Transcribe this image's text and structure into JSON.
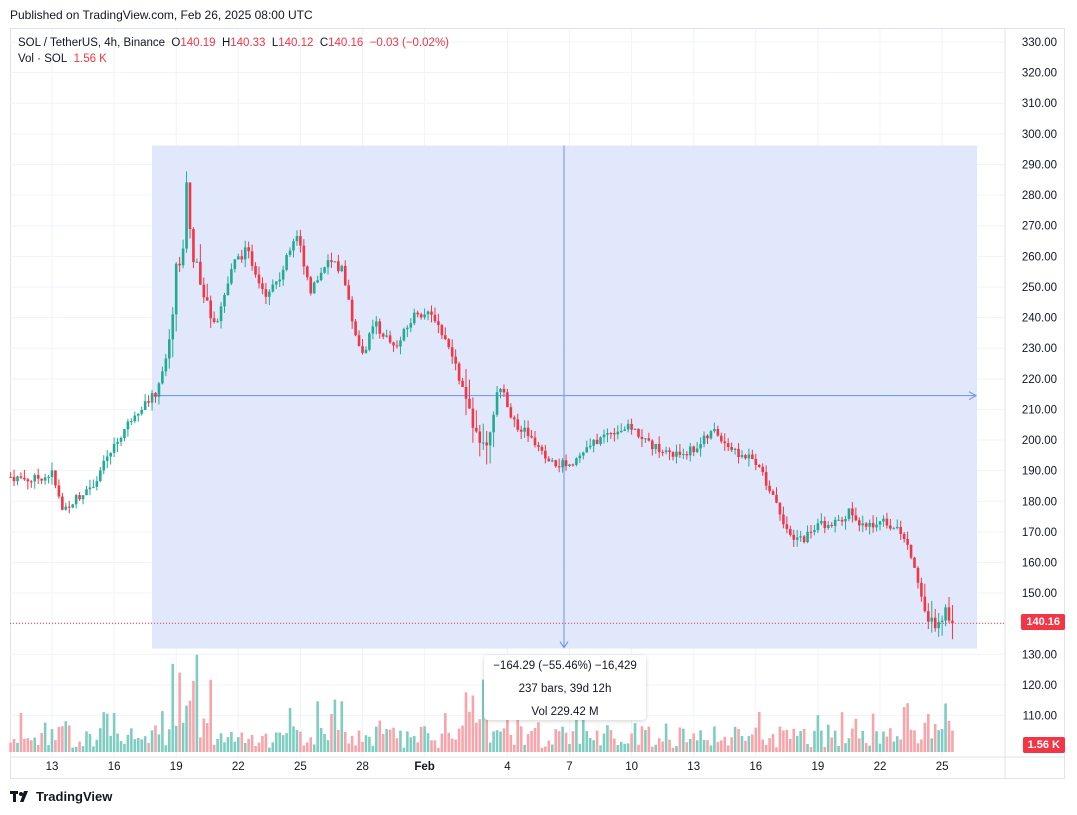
{
  "published": "Published on TradingView.com, Feb 26, 2025 08:00 UTC",
  "legend": {
    "symbol": "SOL / TetherUS, 4h, Binance",
    "o_label": "O",
    "o_value": "140.19",
    "h_label": "H",
    "h_value": "140.33",
    "l_label": "L",
    "l_value": "140.12",
    "c_label": "C",
    "c_value": "140.16",
    "change": "−0.03 (−0.02%)",
    "vol_label": "Vol · SOL",
    "vol_value": "1.56 K"
  },
  "measure": {
    "line1": "−164.29 (−55.46%) −16,429",
    "line2": "237 bars, 39d 12h",
    "line3": "Vol 229.42 M"
  },
  "price_tag": "140.16",
  "volume_tag": "1.56 K",
  "brand": "TradingView",
  "colors": {
    "up": "#22ab94",
    "down": "#f23645",
    "up_vol": "#7fcdc0",
    "down_vol": "#f7a5ab",
    "measure_fill": "#dce4fb",
    "measure_line": "#6e8ff0"
  },
  "chart_data": {
    "type": "candlestick",
    "symbol": "SOL / TetherUS",
    "interval": "4h",
    "exchange": "Binance",
    "y_axis_ticks": [
      "330.00",
      "320.00",
      "310.00",
      "300.00",
      "290.00",
      "280.00",
      "270.00",
      "260.00",
      "250.00",
      "240.00",
      "230.00",
      "220.00",
      "210.00",
      "200.00",
      "190.00",
      "180.00",
      "170.00",
      "160.00",
      "150.00",
      "140.00",
      "130.00",
      "120.00",
      "110.00"
    ],
    "x_axis_ticks": [
      "13",
      "16",
      "19",
      "22",
      "25",
      "28",
      "Feb",
      "4",
      "7",
      "10",
      "13",
      "16",
      "19",
      "22",
      "25"
    ],
    "ylim": [
      100,
      334
    ],
    "last_price": 140.16,
    "price_path": [
      {
        "day": 11,
        "price": 188
      },
      {
        "day": 12,
        "price": 187
      },
      {
        "day": 13,
        "price": 189
      },
      {
        "day": 13.5,
        "price": 177
      },
      {
        "day": 14,
        "price": 180
      },
      {
        "day": 15,
        "price": 186
      },
      {
        "day": 16,
        "price": 198
      },
      {
        "day": 17,
        "price": 209
      },
      {
        "day": 18,
        "price": 215
      },
      {
        "day": 18.7,
        "price": 232
      },
      {
        "day": 19,
        "price": 258
      },
      {
        "day": 19.3,
        "price": 262
      },
      {
        "day": 19.5,
        "price": 284
      },
      {
        "day": 19.8,
        "price": 262
      },
      {
        "day": 20.3,
        "price": 246
      },
      {
        "day": 21,
        "price": 240
      },
      {
        "day": 21.8,
        "price": 258
      },
      {
        "day": 22.4,
        "price": 262
      },
      {
        "day": 23.3,
        "price": 248
      },
      {
        "day": 24,
        "price": 253
      },
      {
        "day": 24.8,
        "price": 268
      },
      {
        "day": 25.5,
        "price": 249
      },
      {
        "day": 26.3,
        "price": 258
      },
      {
        "day": 27,
        "price": 256
      },
      {
        "day": 27.6,
        "price": 236
      },
      {
        "day": 28,
        "price": 228
      },
      {
        "day": 28.6,
        "price": 238
      },
      {
        "day": 29.6,
        "price": 230
      },
      {
        "day": 30.6,
        "price": 242
      },
      {
        "day": 31.5,
        "price": 240
      },
      {
        "day": 32.3,
        "price": 228
      },
      {
        "day": 33,
        "price": 213
      },
      {
        "day": 33.6,
        "price": 203
      },
      {
        "day": 34,
        "price": 200
      },
      {
        "day": 34.4,
        "price": 214
      },
      {
        "day": 34.8,
        "price": 216
      },
      {
        "day": 35.3,
        "price": 206
      },
      {
        "day": 36,
        "price": 202
      },
      {
        "day": 37,
        "price": 192
      },
      {
        "day": 38,
        "price": 192
      },
      {
        "day": 39,
        "price": 198
      },
      {
        "day": 40,
        "price": 203
      },
      {
        "day": 41,
        "price": 204
      },
      {
        "day": 42,
        "price": 198
      },
      {
        "day": 43,
        "price": 195
      },
      {
        "day": 44,
        "price": 197
      },
      {
        "day": 45,
        "price": 203
      },
      {
        "day": 46,
        "price": 196
      },
      {
        "day": 47,
        "price": 193
      },
      {
        "day": 48,
        "price": 180
      },
      {
        "day": 48.7,
        "price": 167
      },
      {
        "day": 49.3,
        "price": 168
      },
      {
        "day": 50,
        "price": 172
      },
      {
        "day": 51,
        "price": 174
      },
      {
        "day": 51.6,
        "price": 177
      },
      {
        "day": 52,
        "price": 171
      },
      {
        "day": 53,
        "price": 174
      },
      {
        "day": 54,
        "price": 170
      },
      {
        "day": 54.6,
        "price": 160
      },
      {
        "day": 55,
        "price": 150
      },
      {
        "day": 55.4,
        "price": 137
      },
      {
        "day": 55.8,
        "price": 144
      },
      {
        "day": 56.2,
        "price": 142
      },
      {
        "day": 56.5,
        "price": 140.16
      }
    ],
    "measure_range": {
      "from_price": 296.2,
      "to_price": 131.9,
      "change": -164.29,
      "change_pct": -55.46,
      "bars": 237
    }
  }
}
